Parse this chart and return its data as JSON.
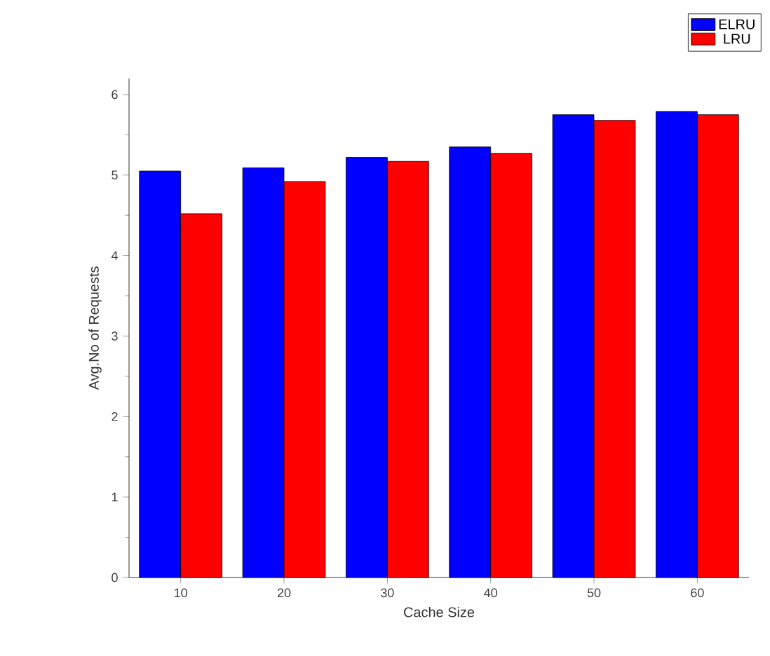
{
  "chart_data": {
    "type": "bar",
    "xlabel": "Cache Size",
    "ylabel": "Avg.No of Requests",
    "categories": [
      "10",
      "20",
      "30",
      "40",
      "50",
      "60"
    ],
    "series": [
      {
        "name": "ELRU",
        "color": "#0000ff",
        "values": [
          5.05,
          5.09,
          5.22,
          5.35,
          5.75,
          5.79
        ]
      },
      {
        "name": "LRU",
        "color": "#ff0000",
        "values": [
          4.52,
          4.92,
          5.17,
          5.27,
          5.68,
          5.75
        ]
      }
    ],
    "ylim": [
      0,
      6.2
    ],
    "yticks": [
      0,
      1,
      2,
      3,
      4,
      5,
      6
    ],
    "legend": "top right",
    "grid": false
  }
}
